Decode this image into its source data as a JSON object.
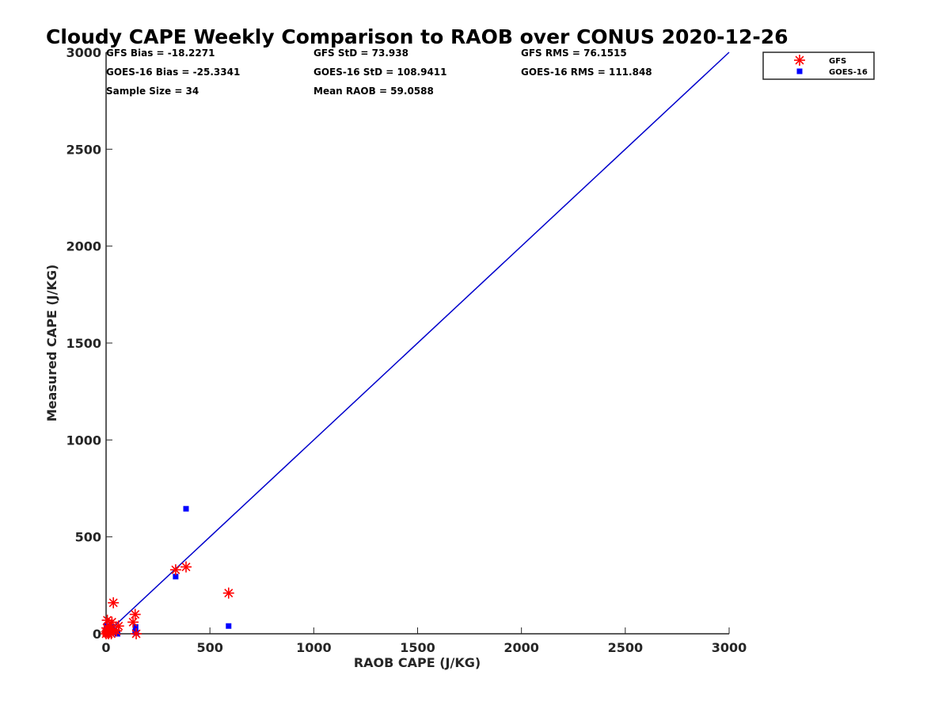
{
  "chart_data": {
    "type": "scatter",
    "title": "Cloudy CAPE Weekly Comparison to RAOB over CONUS 2020-12-26",
    "xlabel": "RAOB CAPE (J/KG)",
    "ylabel": "Measured CAPE (J/KG)",
    "xlim": [
      0,
      3000
    ],
    "ylim": [
      0,
      3000
    ],
    "xticks": [
      "0",
      "500",
      "1000",
      "1500",
      "2000",
      "2500",
      "3000"
    ],
    "yticks": [
      "0",
      "500",
      "1000",
      "1500",
      "2000",
      "2500",
      "3000"
    ],
    "grid": false,
    "legend_position": "top-right, outside plot",
    "stats": [
      "GFS Bias = -18.2271",
      "GOES-16 Bias = -25.3341",
      "Sample Size = 34",
      "GFS StD = 73.938",
      "GOES-16 StD = 108.9411",
      "Mean RAOB = 59.0588",
      "GFS RMS = 76.1515",
      "GOES-16 RMS = 111.848"
    ],
    "reference_line": {
      "x": [
        0,
        3000
      ],
      "y": [
        0,
        3000
      ],
      "color": "#0000cc"
    },
    "series": [
      {
        "name": "GFS",
        "marker": "asterisk",
        "color": "#ff0000",
        "points": [
          [
            0,
            0
          ],
          [
            2,
            10
          ],
          [
            4,
            30
          ],
          [
            6,
            70
          ],
          [
            8,
            5
          ],
          [
            10,
            20
          ],
          [
            12,
            0
          ],
          [
            15,
            40
          ],
          [
            18,
            10
          ],
          [
            20,
            25
          ],
          [
            25,
            0
          ],
          [
            28,
            60
          ],
          [
            35,
            160
          ],
          [
            40,
            20
          ],
          [
            50,
            15
          ],
          [
            60,
            40
          ],
          [
            130,
            60
          ],
          [
            140,
            100
          ],
          [
            145,
            0
          ],
          [
            335,
            330
          ],
          [
            385,
            345
          ],
          [
            590,
            210
          ]
        ]
      },
      {
        "name": "GOES-16",
        "marker": "square",
        "color": "#0000ff",
        "points": [
          [
            0,
            0
          ],
          [
            2,
            40
          ],
          [
            4,
            10
          ],
          [
            6,
            30
          ],
          [
            10,
            0
          ],
          [
            15,
            15
          ],
          [
            20,
            5
          ],
          [
            25,
            25
          ],
          [
            30,
            35
          ],
          [
            40,
            20
          ],
          [
            50,
            10
          ],
          [
            55,
            0
          ],
          [
            140,
            10
          ],
          [
            142,
            35
          ],
          [
            145,
            5
          ],
          [
            335,
            295
          ],
          [
            385,
            645
          ],
          [
            590,
            40
          ]
        ]
      }
    ]
  }
}
